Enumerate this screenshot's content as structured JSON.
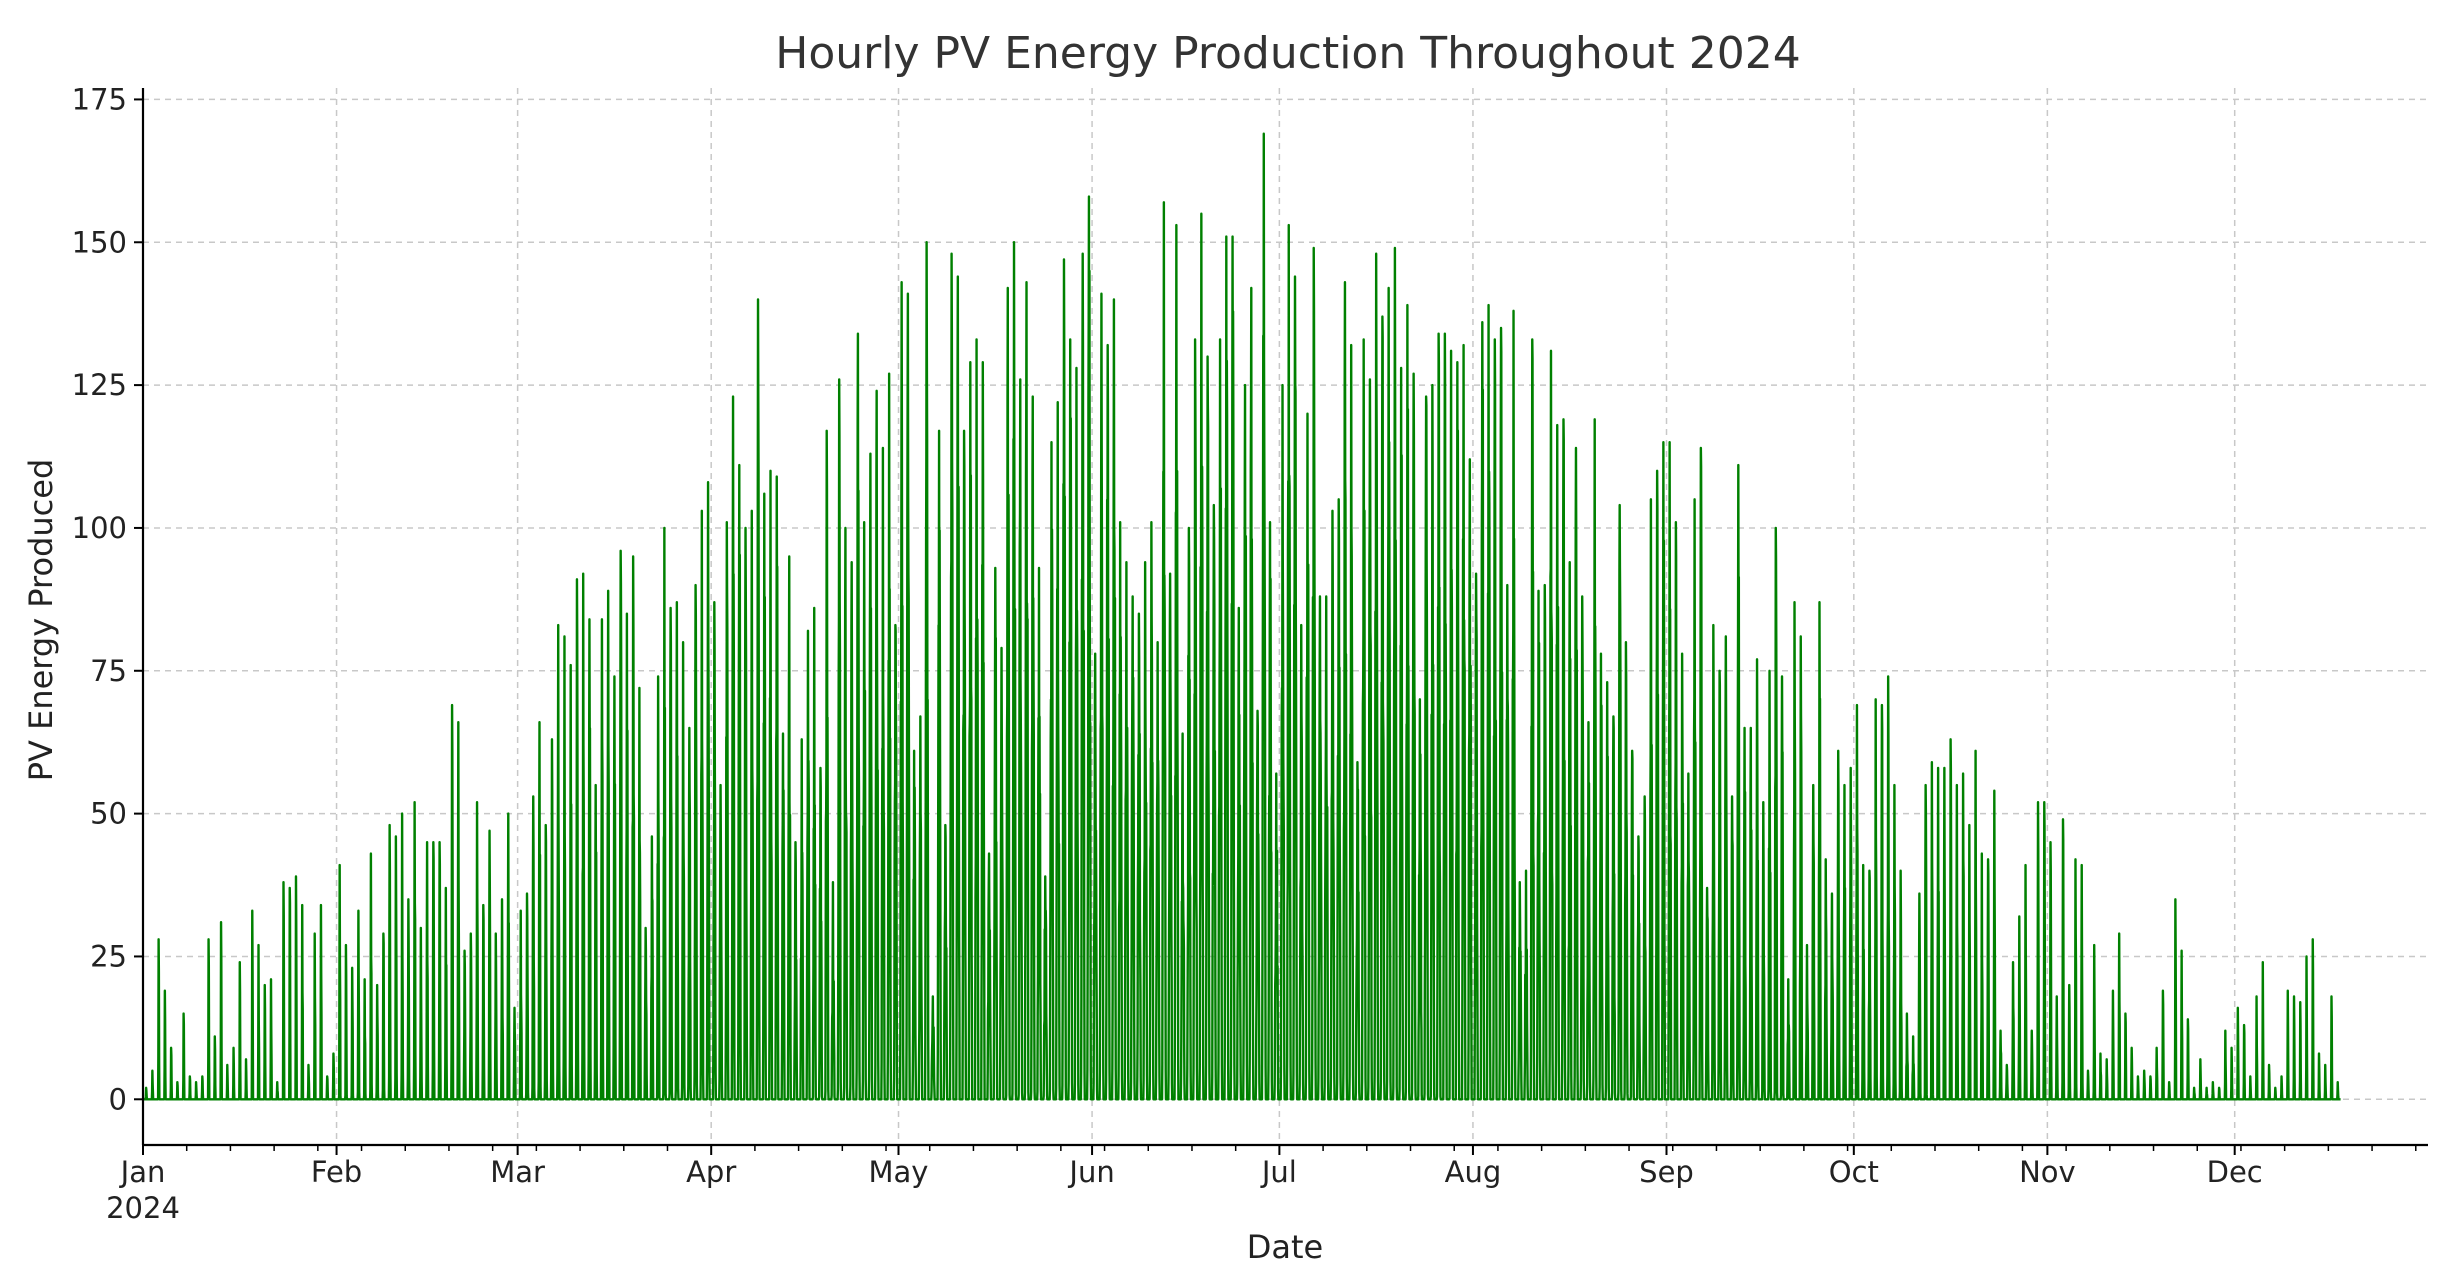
{
  "chart_data": {
    "type": "line",
    "title": "Hourly PV Energy Production Throughout 2024",
    "xlabel": "Date",
    "ylabel": "PV Energy Produced",
    "x_range": [
      "2024-01-01",
      "2024-12-31T23:00"
    ],
    "ylim": [
      -8,
      177
    ],
    "y_ticks": [
      0,
      25,
      50,
      75,
      100,
      125,
      150,
      175
    ],
    "x_ticks": [
      {
        "date": "2024-01-01",
        "label": "Jan",
        "sublabel": "2024"
      },
      {
        "date": "2024-02-01",
        "label": "Feb"
      },
      {
        "date": "2024-03-01",
        "label": "Mar"
      },
      {
        "date": "2024-04-01",
        "label": "Apr"
      },
      {
        "date": "2024-05-01",
        "label": "May"
      },
      {
        "date": "2024-06-01",
        "label": "Jun"
      },
      {
        "date": "2024-07-01",
        "label": "Jul"
      },
      {
        "date": "2024-08-01",
        "label": "Aug"
      },
      {
        "date": "2024-09-01",
        "label": "Sep"
      },
      {
        "date": "2024-10-01",
        "label": "Oct"
      },
      {
        "date": "2024-11-01",
        "label": "Nov"
      },
      {
        "date": "2024-12-01",
        "label": "Dec"
      }
    ],
    "grid": true,
    "series": [
      {
        "color": "#008000",
        "resolution": "hourly",
        "daily_peak_values": [
          2,
          5,
          28,
          19,
          9,
          3,
          15,
          4,
          3,
          4,
          28,
          11,
          31,
          6,
          9,
          24,
          7,
          33,
          27,
          20,
          21,
          3,
          38,
          37,
          39,
          34,
          6,
          29,
          34,
          4,
          8,
          41,
          27,
          23,
          33,
          21,
          43,
          20,
          29,
          48,
          46,
          50,
          35,
          52,
          30,
          45,
          45,
          45,
          37,
          69,
          66,
          26,
          29,
          52,
          34,
          47,
          29,
          35,
          50,
          16,
          33,
          36,
          53,
          66,
          48,
          63,
          83,
          81,
          76,
          91,
          92,
          84,
          55,
          84,
          89,
          74,
          96,
          85,
          95,
          72,
          30,
          46,
          74,
          100,
          86,
          87,
          80,
          65,
          90,
          103,
          108,
          87,
          55,
          101,
          123,
          111,
          100,
          103,
          140,
          106,
          110,
          109,
          64,
          95,
          45,
          63,
          82,
          86,
          58,
          117,
          38,
          126,
          100,
          94,
          134,
          101,
          113,
          124,
          114,
          127,
          83,
          143,
          141,
          61,
          67,
          150,
          18,
          117,
          48,
          148,
          144,
          117,
          129,
          133,
          129,
          43,
          93,
          79,
          142,
          150,
          126,
          143,
          123,
          93,
          39,
          115,
          122,
          147,
          133,
          128,
          148,
          158,
          78,
          141,
          132,
          140,
          101,
          94,
          88,
          85,
          94,
          101,
          80,
          157,
          92,
          153,
          64,
          100,
          133,
          155,
          130,
          104,
          133,
          151,
          151,
          86,
          125,
          142,
          68,
          169,
          101,
          57,
          125,
          153,
          144,
          83,
          120,
          149,
          88,
          88,
          103,
          105,
          143,
          132,
          59,
          133,
          126,
          148,
          137,
          142,
          149,
          128,
          139,
          127,
          70,
          123,
          125,
          134,
          134,
          131,
          129,
          132,
          112,
          92,
          136,
          139,
          133,
          135,
          90,
          138,
          38,
          40,
          133,
          89,
          90,
          131,
          118,
          119,
          94,
          114,
          88,
          66,
          119,
          78,
          73,
          67,
          104,
          80,
          61,
          46,
          53,
          105,
          110,
          115,
          115,
          101,
          78,
          57,
          105,
          114,
          37,
          83,
          75,
          81,
          53,
          111,
          65,
          65,
          77,
          52,
          75,
          100,
          74,
          21,
          87,
          81,
          27,
          55,
          87,
          42,
          36,
          61,
          55,
          58,
          69,
          41,
          40,
          70,
          69,
          74,
          55,
          40,
          15,
          11,
          36,
          55,
          59,
          58,
          58,
          63,
          55,
          57,
          48,
          61,
          43,
          42,
          54,
          12,
          6,
          24,
          32,
          41,
          12,
          52,
          52,
          45,
          18,
          49,
          20,
          42,
          41,
          5,
          27,
          8,
          7,
          19,
          29,
          15,
          9,
          4,
          5,
          4,
          9,
          19,
          3,
          35,
          26,
          14,
          2,
          7,
          2,
          3,
          2,
          12,
          9,
          16,
          13,
          4,
          18,
          24,
          6,
          2,
          4,
          19,
          18,
          17,
          25,
          28,
          8,
          6,
          18,
          3
        ]
      }
    ]
  }
}
